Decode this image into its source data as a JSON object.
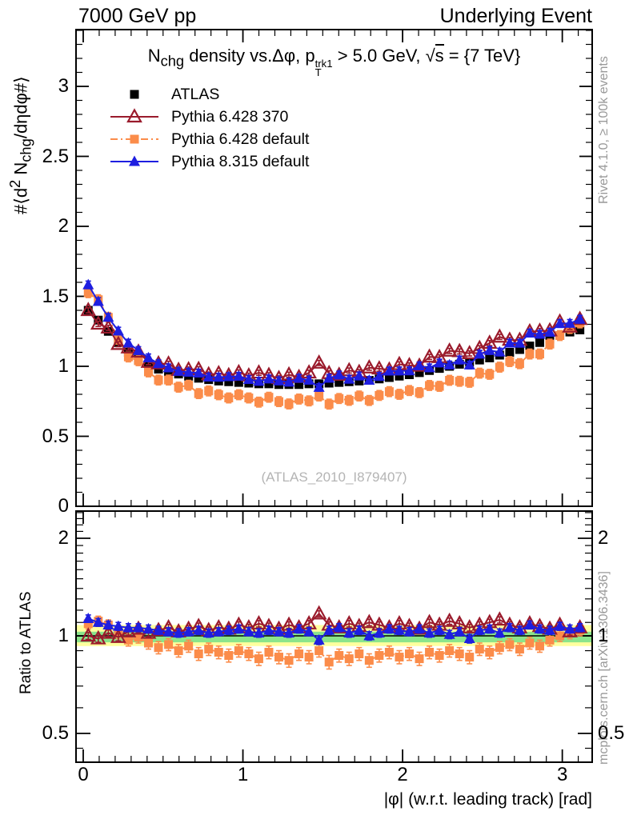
{
  "header": {
    "left": "7000 GeV pp",
    "right": "Underlying Event"
  },
  "title": {
    "t1": "N",
    "t1sub": "chg",
    "t2": " density vs.Δφ, p",
    "psup": "trk1",
    "psub": "T",
    "t3": " > 5.0 GeV, ",
    "sq": "√",
    "sbar": "s",
    "t4": " = {7 TeV}"
  },
  "watermark": "(ATLAS_2010_I879407)",
  "side_captions": {
    "top": "Rivet 4.1.0, ≥ 100k events",
    "bottom": "mcplots.cern.ch [arXiv:1306.3436]"
  },
  "legend": [
    {
      "label": "ATLAS"
    },
    {
      "label": "Pythia 6.428 370"
    },
    {
      "label": "Pythia 6.428 default"
    },
    {
      "label": "Pythia 8.315 default"
    }
  ],
  "axes": {
    "main_ylabel": {
      "p1": "#⟨d",
      "p1sup": "2",
      "p2": " N",
      "p2sub": "chg",
      "p3": "/dηdφ#⟩"
    },
    "ratio_ylabel": "Ratio to ATLAS",
    "xlabel": "|φ| (w.r.t. leading track) [rad]",
    "x_ticks": [
      0,
      1,
      2,
      3
    ],
    "main_y_ticks": [
      0,
      0.5,
      1,
      1.5,
      2,
      2.5,
      3
    ],
    "ratio_y_ticks": [
      0.5,
      1,
      2
    ]
  },
  "chart_data": [
    {
      "type": "scatter",
      "panel": "main",
      "title": "Nchg density vs. Δφ, pT(trk1) > 5.0 GeV, sqrt(s) = 7 TeV",
      "xlabel": "|φ| (w.r.t. leading track) [rad]",
      "ylabel": "#⟨d2 Nchg/dηdφ#⟩",
      "xlim": [
        -0.045,
        3.187
      ],
      "ylim": [
        0,
        3.406
      ],
      "grid": false,
      "legend_position": "top-left",
      "x": [
        0.0314,
        0.0942,
        0.1571,
        0.2199,
        0.2827,
        0.3456,
        0.4084,
        0.4712,
        0.5341,
        0.5969,
        0.6597,
        0.7226,
        0.7854,
        0.8482,
        0.9111,
        0.9739,
        1.0367,
        1.0996,
        1.1624,
        1.2252,
        1.2881,
        1.3509,
        1.4137,
        1.4765,
        1.5394,
        1.6022,
        1.665,
        1.7279,
        1.7907,
        1.8535,
        1.9164,
        1.9792,
        2.042,
        2.1049,
        2.1677,
        2.2305,
        2.2934,
        2.3562,
        2.419,
        2.4819,
        2.5447,
        2.6075,
        2.6704,
        2.7332,
        2.796,
        2.8588,
        2.9217,
        2.9845,
        3.0473,
        3.1102
      ],
      "series": [
        {
          "name": "ATLAS",
          "color": "#000000",
          "marker": "square",
          "line": "none",
          "err": 0.02,
          "values": [
            1.4,
            1.33,
            1.25,
            1.17,
            1.1,
            1.05,
            1.01,
            0.98,
            0.96,
            0.945,
            0.93,
            0.915,
            0.905,
            0.895,
            0.89,
            0.885,
            0.88,
            0.875,
            0.875,
            0.87,
            0.87,
            0.87,
            0.875,
            0.875,
            0.88,
            0.885,
            0.89,
            0.895,
            0.9,
            0.91,
            0.92,
            0.93,
            0.94,
            0.955,
            0.97,
            0.985,
            1.0,
            1.015,
            1.03,
            1.045,
            1.06,
            1.08,
            1.1,
            1.12,
            1.145,
            1.17,
            1.195,
            1.22,
            1.245,
            1.26
          ]
        },
        {
          "name": "Pythia 6.428 370",
          "color": "#9a1b2c",
          "marker": "triangle-open",
          "line": "solid",
          "err": 0.018,
          "values": [
            1.4,
            1.303,
            1.275,
            1.158,
            1.133,
            1.103,
            1.03,
            1.019,
            1.018,
            0.973,
            0.977,
            0.979,
            0.941,
            0.949,
            0.935,
            0.956,
            0.933,
            0.954,
            0.936,
            0.914,
            0.94,
            0.922,
            0.954,
            1.024,
            0.95,
            0.938,
            0.97,
            0.958,
            0.99,
            0.983,
            0.975,
            1.014,
            1.006,
            1.003,
            1.067,
            1.064,
            1.11,
            1.106,
            1.092,
            1.129,
            1.166,
            1.21,
            1.188,
            1.187,
            1.248,
            1.252,
            1.255,
            1.318,
            1.282,
            1.336
          ]
        },
        {
          "name": "Pythia 6.428 default",
          "color": "#fb8c4a",
          "marker": "square",
          "line": "dashdot",
          "err": 0.035,
          "values": [
            1.526,
            1.476,
            1.35,
            1.193,
            1.067,
            1.04,
            0.96,
            0.902,
            0.902,
            0.851,
            0.865,
            0.805,
            0.824,
            0.797,
            0.774,
            0.797,
            0.774,
            0.744,
            0.779,
            0.748,
            0.731,
            0.766,
            0.753,
            0.788,
            0.73,
            0.77,
            0.757,
            0.788,
            0.756,
            0.792,
            0.819,
            0.8,
            0.827,
            0.812,
            0.863,
            0.857,
            0.9,
            0.893,
            0.886,
            0.951,
            0.943,
            0.994,
            1.034,
            1.019,
            1.088,
            1.088,
            1.159,
            1.22,
            1.27,
            1.31
          ]
        },
        {
          "name": "Pythia 8.315 default",
          "color": "#1e1ee0",
          "marker": "triangle",
          "line": "solid",
          "err": 0.027,
          "values": [
            1.582,
            1.463,
            1.35,
            1.252,
            1.166,
            1.113,
            1.061,
            1.019,
            0.989,
            0.964,
            0.958,
            0.952,
            0.923,
            0.922,
            0.926,
            0.929,
            0.906,
            0.893,
            0.91,
            0.896,
            0.887,
            0.914,
            0.901,
            0.849,
            0.915,
            0.938,
            0.908,
            0.931,
            0.9,
            0.928,
            0.966,
            0.967,
            0.968,
            1.003,
            0.989,
            1.024,
            1.01,
            1.045,
            1.009,
            1.087,
            1.113,
            1.102,
            1.166,
            1.165,
            1.237,
            1.229,
            1.243,
            1.305,
            1.307,
            1.336
          ]
        }
      ]
    },
    {
      "type": "scatter",
      "panel": "ratio",
      "ylabel": "Ratio to ATLAS",
      "yscale": "log",
      "xlim": [
        -0.045,
        3.187
      ],
      "ylim": [
        0.408,
        2.43
      ],
      "reference_line": 1,
      "bands": {
        "yellow": {
          "range": [
            0.93,
            1.08
          ],
          "color": "#ffff9e"
        },
        "green": {
          "range": [
            0.955,
            1.03
          ],
          "color": "#8be48b"
        }
      },
      "series": [
        {
          "name": "Pythia 6.428 370",
          "color": "#9a1b2c",
          "marker": "triangle-open",
          "line": "solid",
          "err": 0.025,
          "values": [
            1.0,
            0.98,
            1.02,
            0.99,
            1.03,
            1.05,
            1.02,
            1.04,
            1.06,
            1.03,
            1.05,
            1.07,
            1.04,
            1.06,
            1.05,
            1.08,
            1.06,
            1.09,
            1.07,
            1.05,
            1.08,
            1.06,
            1.09,
            1.17,
            1.08,
            1.06,
            1.09,
            1.07,
            1.1,
            1.08,
            1.06,
            1.09,
            1.07,
            1.05,
            1.1,
            1.08,
            1.11,
            1.09,
            1.06,
            1.08,
            1.1,
            1.12,
            1.08,
            1.06,
            1.09,
            1.07,
            1.05,
            1.08,
            1.03,
            1.06
          ]
        },
        {
          "name": "Pythia 6.428 default",
          "color": "#fb8c4a",
          "marker": "square",
          "line": "dashdot",
          "err": 0.04,
          "values": [
            1.09,
            1.11,
            1.08,
            1.02,
            0.97,
            0.99,
            0.95,
            0.92,
            0.94,
            0.9,
            0.93,
            0.88,
            0.91,
            0.89,
            0.87,
            0.9,
            0.88,
            0.85,
            0.89,
            0.86,
            0.84,
            0.88,
            0.86,
            0.9,
            0.83,
            0.87,
            0.85,
            0.88,
            0.84,
            0.87,
            0.89,
            0.86,
            0.88,
            0.85,
            0.89,
            0.87,
            0.9,
            0.88,
            0.86,
            0.91,
            0.89,
            0.92,
            0.94,
            0.91,
            0.95,
            0.93,
            0.97,
            1.0,
            1.02,
            1.04
          ]
        },
        {
          "name": "Pythia 8.315 default",
          "color": "#1e1ee0",
          "marker": "triangle",
          "line": "solid",
          "err": 0.03,
          "values": [
            1.13,
            1.1,
            1.08,
            1.07,
            1.06,
            1.06,
            1.05,
            1.04,
            1.03,
            1.02,
            1.03,
            1.04,
            1.02,
            1.03,
            1.04,
            1.05,
            1.03,
            1.02,
            1.04,
            1.03,
            1.02,
            1.05,
            1.03,
            0.97,
            1.04,
            1.06,
            1.02,
            1.04,
            1.0,
            1.02,
            1.05,
            1.04,
            1.03,
            1.05,
            1.02,
            1.04,
            1.01,
            1.03,
            0.98,
            1.04,
            1.05,
            1.02,
            1.06,
            1.04,
            1.08,
            1.05,
            1.04,
            1.07,
            1.05,
            1.06
          ]
        }
      ]
    }
  ]
}
